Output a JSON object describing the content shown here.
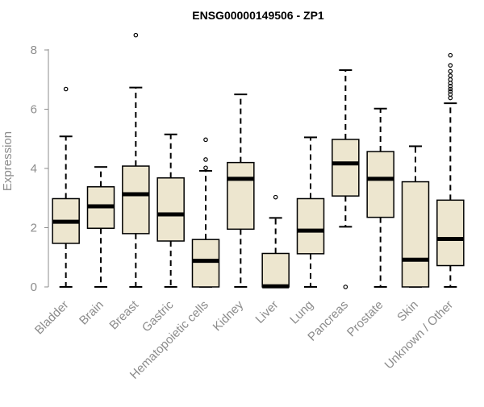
{
  "colors": {
    "box_fill": "#EDE6CF",
    "stroke": "#000000",
    "axis_text": "#8C8C8C",
    "title_text": "#000000"
  },
  "chart_data": {
    "type": "boxplot",
    "title": "ENSG00000149506 - ZP1",
    "xlabel": "",
    "ylabel": "Expression",
    "ylim": [
      0,
      8.5
    ],
    "yticks": [
      0,
      2,
      4,
      6,
      8
    ],
    "grid": false,
    "categories": [
      "Bladder",
      "Brain",
      "Breast",
      "Gastric",
      "Hematopoietic cells",
      "Kidney",
      "Liver",
      "Lung",
      "Pancreas",
      "Prostate",
      "Skin",
      "Unknown / Other"
    ],
    "boxes": [
      {
        "category": "Bladder",
        "whisker_low": 0,
        "q1": 1.47,
        "median": 2.2,
        "q3": 2.98,
        "whisker_high": 5.08,
        "outliers": [
          6.68
        ]
      },
      {
        "category": "Brain",
        "whisker_low": 0,
        "q1": 1.98,
        "median": 2.72,
        "q3": 3.38,
        "whisker_high": 4.05,
        "outliers": []
      },
      {
        "category": "Breast",
        "whisker_low": 0,
        "q1": 1.8,
        "median": 3.13,
        "q3": 4.08,
        "whisker_high": 6.73,
        "outliers": [
          8.5
        ]
      },
      {
        "category": "Gastric",
        "whisker_low": 0,
        "q1": 1.55,
        "median": 2.45,
        "q3": 3.68,
        "whisker_high": 5.15,
        "outliers": []
      },
      {
        "category": "Hematopoietic cells",
        "whisker_low": 0,
        "q1": 0,
        "median": 0.88,
        "q3": 1.6,
        "whisker_high": 3.92,
        "outliers": [
          4.02,
          4.3,
          4.97
        ]
      },
      {
        "category": "Kidney",
        "whisker_low": 0,
        "q1": 1.95,
        "median": 3.65,
        "q3": 4.2,
        "whisker_high": 6.5,
        "outliers": []
      },
      {
        "category": "Liver",
        "whisker_low": 0,
        "q1": 0,
        "median": 0.02,
        "q3": 1.13,
        "whisker_high": 2.33,
        "outliers": [
          3.03
        ]
      },
      {
        "category": "Lung",
        "whisker_low": 0,
        "q1": 1.12,
        "median": 1.9,
        "q3": 2.98,
        "whisker_high": 5.05,
        "outliers": []
      },
      {
        "category": "Pancreas",
        "whisker_low": 2.03,
        "q1": 3.07,
        "median": 4.17,
        "q3": 4.98,
        "whisker_high": 7.32,
        "outliers": [
          0
        ]
      },
      {
        "category": "Prostate",
        "whisker_low": 0,
        "q1": 2.35,
        "median": 3.65,
        "q3": 4.57,
        "whisker_high": 6.02,
        "outliers": []
      },
      {
        "category": "Skin",
        "whisker_low": 0,
        "q1": 0,
        "median": 0.92,
        "q3": 3.55,
        "whisker_high": 4.75,
        "outliers": []
      },
      {
        "category": "Unknown / Other",
        "whisker_low": 0,
        "q1": 0.72,
        "median": 1.62,
        "q3": 2.93,
        "whisker_high": 6.2,
        "outliers": [
          6.38,
          6.5,
          6.6,
          6.68,
          6.78,
          6.88,
          7.0,
          7.13,
          7.28,
          7.48,
          7.82
        ]
      }
    ]
  }
}
